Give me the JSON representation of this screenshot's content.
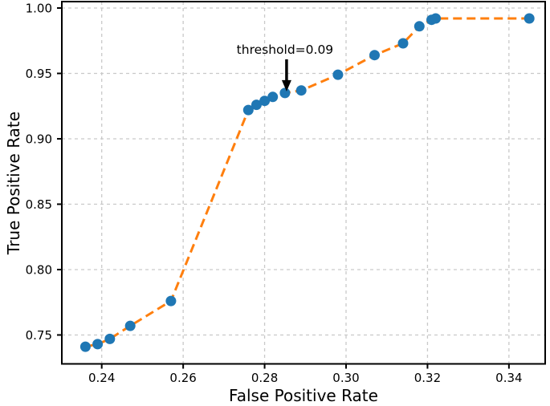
{
  "figure": {
    "background_color": "#ffffff",
    "spine_color": "#000000",
    "grid_color": "#c9c9c9",
    "line_color": "#ff7f0e",
    "marker_color": "#1f77b4",
    "annotation_arrow_color": "#000000",
    "text_color": "#000000"
  },
  "chart_data": {
    "type": "line",
    "title": "",
    "xlabel": "False Positive Rate",
    "ylabel": "True Positive Rate",
    "line_style": "dashed",
    "marker": "circle",
    "grid": true,
    "legend": false,
    "xlim": [
      0.2302,
      0.3489
    ],
    "ylim": [
      0.7279,
      1.0049
    ],
    "xticks": [
      0.24,
      0.26,
      0.28,
      0.3,
      0.32,
      0.34
    ],
    "yticks": [
      0.75,
      0.8,
      0.85,
      0.9,
      0.95,
      1.0
    ],
    "tick_decimals": 2,
    "x": [
      0.236,
      0.239,
      0.242,
      0.247,
      0.257,
      0.276,
      0.278,
      0.28,
      0.282,
      0.285,
      0.289,
      0.298,
      0.307,
      0.314,
      0.318,
      0.321,
      0.322,
      0.345
    ],
    "y": [
      0.741,
      0.743,
      0.747,
      0.757,
      0.776,
      0.922,
      0.926,
      0.929,
      0.932,
      0.935,
      0.937,
      0.949,
      0.964,
      0.973,
      0.986,
      0.991,
      0.992,
      0.992
    ],
    "annotation": {
      "text": "threshold=0.09",
      "target": {
        "x": 0.285,
        "y": 0.935
      }
    }
  }
}
